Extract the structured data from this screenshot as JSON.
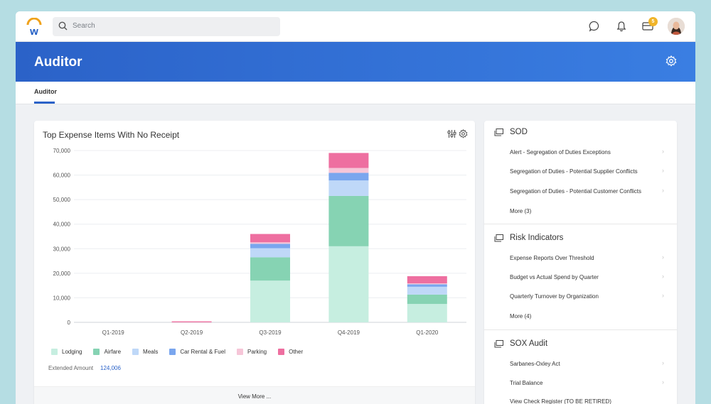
{
  "search": {
    "placeholder": "Search"
  },
  "topbar": {
    "inbox_badge": "5"
  },
  "page": {
    "title": "Auditor",
    "tab": "Auditor"
  },
  "colors": {
    "brand_blue": "#2b62c8",
    "lodging": "#c6eee0",
    "airfare": "#86d3b3",
    "meals": "#bfd8f8",
    "car_rental": "#7aa6ee",
    "parking": "#f6c6d8",
    "other": "#ee6fa0"
  },
  "chart_card": {
    "title": "Top Expense Items With No Receipt",
    "extended_label": "Extended Amount",
    "extended_value": "124,006",
    "view_more": "View More ..."
  },
  "chart_data": {
    "type": "bar",
    "stacked": true,
    "categories": [
      "Q1-2019",
      "Q2-2019",
      "Q3-2019",
      "Q4-2019",
      "Q1-2020"
    ],
    "series": [
      {
        "name": "Lodging",
        "color": "#c6eee0",
        "values": [
          0,
          0,
          17000,
          31000,
          7500
        ]
      },
      {
        "name": "Airfare",
        "color": "#86d3b3",
        "values": [
          0,
          0,
          9500,
          20500,
          3800
        ]
      },
      {
        "name": "Meals",
        "color": "#bfd8f8",
        "values": [
          0,
          0,
          3700,
          6300,
          3200
        ]
      },
      {
        "name": "Car Rental & Fuel",
        "color": "#7aa6ee",
        "values": [
          0,
          0,
          1800,
          3100,
          1000
        ]
      },
      {
        "name": "Parking",
        "color": "#f6c6d8",
        "values": [
          0,
          0,
          600,
          2000,
          400
        ]
      },
      {
        "name": "Other",
        "color": "#ee6fa0",
        "values": [
          0,
          400,
          3400,
          6100,
          2900
        ]
      }
    ],
    "ylim": [
      0,
      70000
    ],
    "yticks": [
      "0",
      "10,000",
      "20,000",
      "30,000",
      "40,000",
      "50,000",
      "60,000",
      "70,000"
    ],
    "ytick_values": [
      0,
      10000,
      20000,
      30000,
      40000,
      50000,
      60000,
      70000
    ],
    "grid": true,
    "legend": "bottom-left"
  },
  "sod": {
    "title": "SOD",
    "items": [
      "Alert - Segregation of Duties Exceptions",
      "Segregation of Duties - Potential Supplier Conflicts",
      "Segregation of Duties - Potential Customer Conflicts"
    ],
    "more": "More (3)"
  },
  "risk": {
    "title": "Risk Indicators",
    "items": [
      "Expense Reports Over Threshold",
      "Budget vs Actual Spend by Quarter",
      "Quarterly Turnover by Organization"
    ],
    "more": "More (4)"
  },
  "sox": {
    "title": "SOX Audit",
    "items": [
      "Sarbanes-Oxley Act",
      "Trial Balance",
      "View Check Register (TO BE RETIRED)"
    ]
  }
}
